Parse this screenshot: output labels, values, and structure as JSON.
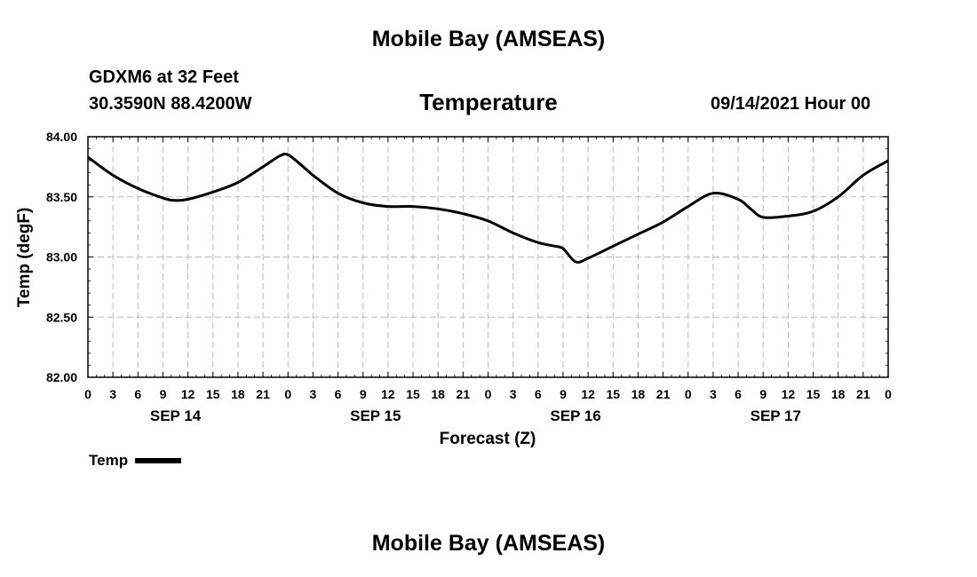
{
  "header": {
    "title": "Mobile Bay (AMSEAS)",
    "station": "GDXM6 at 32 Feet",
    "coords": "30.3590N  88.4200W",
    "variable": "Temperature",
    "datetime": "09/14/2021 Hour 00"
  },
  "footer": {
    "title": "Mobile Bay (AMSEAS)"
  },
  "legend": {
    "label": "Temp"
  },
  "chart_data": {
    "type": "line",
    "title": "Temperature",
    "xlabel": "Forecast (Z)",
    "ylabel": "Temp (degF)",
    "ylim": [
      82.0,
      84.0
    ],
    "y_ticks": [
      "82.00",
      "82.50",
      "83.00",
      "83.50",
      "84.00"
    ],
    "x_range_hours": [
      0,
      96
    ],
    "x_tick_labels": [
      "0",
      "3",
      "6",
      "9",
      "12",
      "15",
      "18",
      "21",
      "0",
      "3",
      "6",
      "9",
      "12",
      "15",
      "18",
      "21",
      "0",
      "3",
      "6",
      "9",
      "12",
      "15",
      "18",
      "21",
      "0",
      "3",
      "6",
      "9",
      "12",
      "15",
      "18",
      "21",
      "0"
    ],
    "day_labels": [
      "SEP 14",
      "SEP 15",
      "SEP 16",
      "SEP 17"
    ],
    "grid": true,
    "legend_position": "bottom-left",
    "series": [
      {
        "name": "Temp",
        "color": "#000000",
        "x": [
          0,
          3,
          6,
          9,
          10.5,
          12,
          15,
          18,
          21,
          23,
          24,
          25.5,
          27,
          30,
          33,
          36,
          39,
          42,
          45,
          48,
          51,
          54,
          56,
          57,
          58.5,
          60,
          63,
          66,
          69,
          72,
          75,
          78,
          79.5,
          81,
          84,
          87,
          90,
          93,
          96
        ],
        "values": [
          83.83,
          83.68,
          83.57,
          83.49,
          83.47,
          83.48,
          83.54,
          83.62,
          83.75,
          83.84,
          83.85,
          83.77,
          83.68,
          83.53,
          83.45,
          83.42,
          83.42,
          83.4,
          83.36,
          83.3,
          83.2,
          83.12,
          83.09,
          83.07,
          82.96,
          82.99,
          83.09,
          83.19,
          83.29,
          83.42,
          83.53,
          83.48,
          83.4,
          83.33,
          83.34,
          83.38,
          83.5,
          83.68,
          83.8
        ]
      }
    ]
  }
}
